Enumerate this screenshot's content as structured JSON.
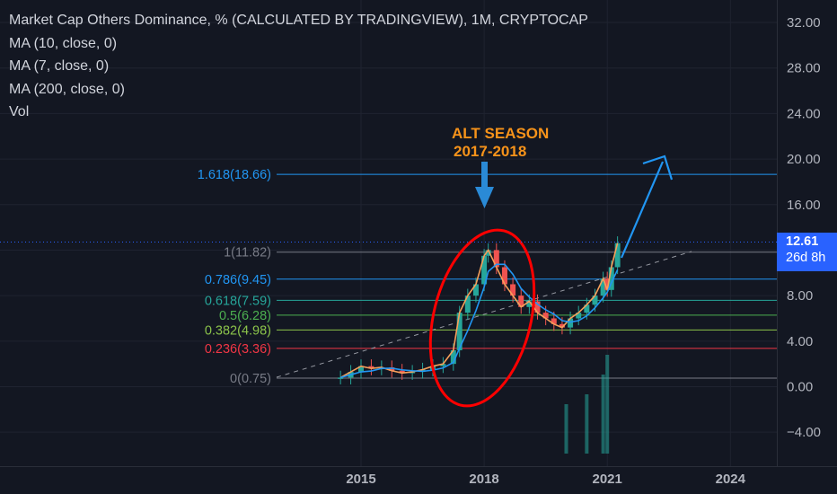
{
  "legend": {
    "title": "Market Cap Others Dominance, % (CALCULATED BY TRADINGVIEW), 1M, CRYPTOCAP",
    "ma10": "MA (10, close, 0)",
    "ma7": "MA (7, close, 0)",
    "ma200": "MA (200, close, 0)",
    "vol": "Vol"
  },
  "price_badge": {
    "value": "12.61",
    "countdown": "26d 8h"
  },
  "annotation": {
    "line1": "ALT SEASON",
    "line2": "2017-2018"
  },
  "colors": {
    "background": "#131722",
    "up": "#26a69a",
    "down": "#ef5350",
    "ma_fast": "#f6a05b",
    "ma_slow": "#2196f3",
    "fib_1618": "#2196f3",
    "annotation": "#f7931a",
    "circle": "#ff0000",
    "badge": "#2962ff"
  },
  "chart_data": {
    "type": "line",
    "title": "Market Cap Others Dominance, % (CALCULATED BY TRADINGVIEW), 1M, CRYPTOCAP",
    "x_tick_labels": [
      "2015",
      "2018",
      "2021",
      "2024"
    ],
    "y_tick_labels": [
      "32.00",
      "28.00",
      "24.00",
      "20.00",
      "16.00",
      "12.00",
      "8.00",
      "4.00",
      "0.00",
      "−4.00"
    ],
    "ylim": [
      -6.3,
      33.8
    ],
    "xlim": [
      2012.7,
      2026.2
    ],
    "fib_levels": [
      {
        "label": "1.618(18.66)",
        "value": 18.66,
        "color": "#2196f3"
      },
      {
        "label": "1(11.82)",
        "value": 11.82,
        "color": "#787b86"
      },
      {
        "label": "0.786(9.45)",
        "value": 9.45,
        "color": "#2196f3"
      },
      {
        "label": "0.618(7.59)",
        "value": 7.59,
        "color": "#26a69a"
      },
      {
        "label": "0.5(6.28)",
        "value": 6.28,
        "color": "#4caf50"
      },
      {
        "label": "0.382(4.98)",
        "value": 4.98,
        "color": "#8bc34a"
      },
      {
        "label": "0.236(3.36)",
        "value": 3.36,
        "color": "#f23645"
      },
      {
        "label": "0(0.75)",
        "value": 0.75,
        "color": "#787b86"
      }
    ],
    "series": [
      {
        "name": "Market Cap Others Dominance",
        "x": [
          2014.5,
          2014.75,
          2015.0,
          2015.25,
          2015.5,
          2015.75,
          2016.0,
          2016.25,
          2016.5,
          2016.75,
          2017.0,
          2017.25,
          2017.4,
          2017.6,
          2017.8,
          2018.0,
          2018.1,
          2018.3,
          2018.5,
          2018.7,
          2018.9,
          2019.1,
          2019.3,
          2019.5,
          2019.7,
          2019.9,
          2020.1,
          2020.3,
          2020.5,
          2020.7,
          2020.9,
          2021.0,
          2021.1,
          2021.25
        ],
        "y": [
          0.8,
          1.3,
          1.8,
          1.6,
          1.7,
          1.4,
          1.2,
          1.3,
          1.5,
          1.8,
          2.0,
          3.2,
          6.5,
          8.0,
          9.0,
          11.5,
          12.0,
          10.5,
          9.0,
          8.0,
          7.0,
          7.5,
          6.5,
          6.0,
          5.5,
          5.2,
          6.0,
          6.5,
          7.2,
          8.0,
          9.5,
          8.5,
          10.5,
          12.61
        ]
      }
    ],
    "volume": [
      {
        "x": 2020.0,
        "v": 0.5
      },
      {
        "x": 2020.5,
        "v": 0.6
      },
      {
        "x": 2020.9,
        "v": 0.8
      },
      {
        "x": 2021.0,
        "v": 1.0
      }
    ]
  }
}
